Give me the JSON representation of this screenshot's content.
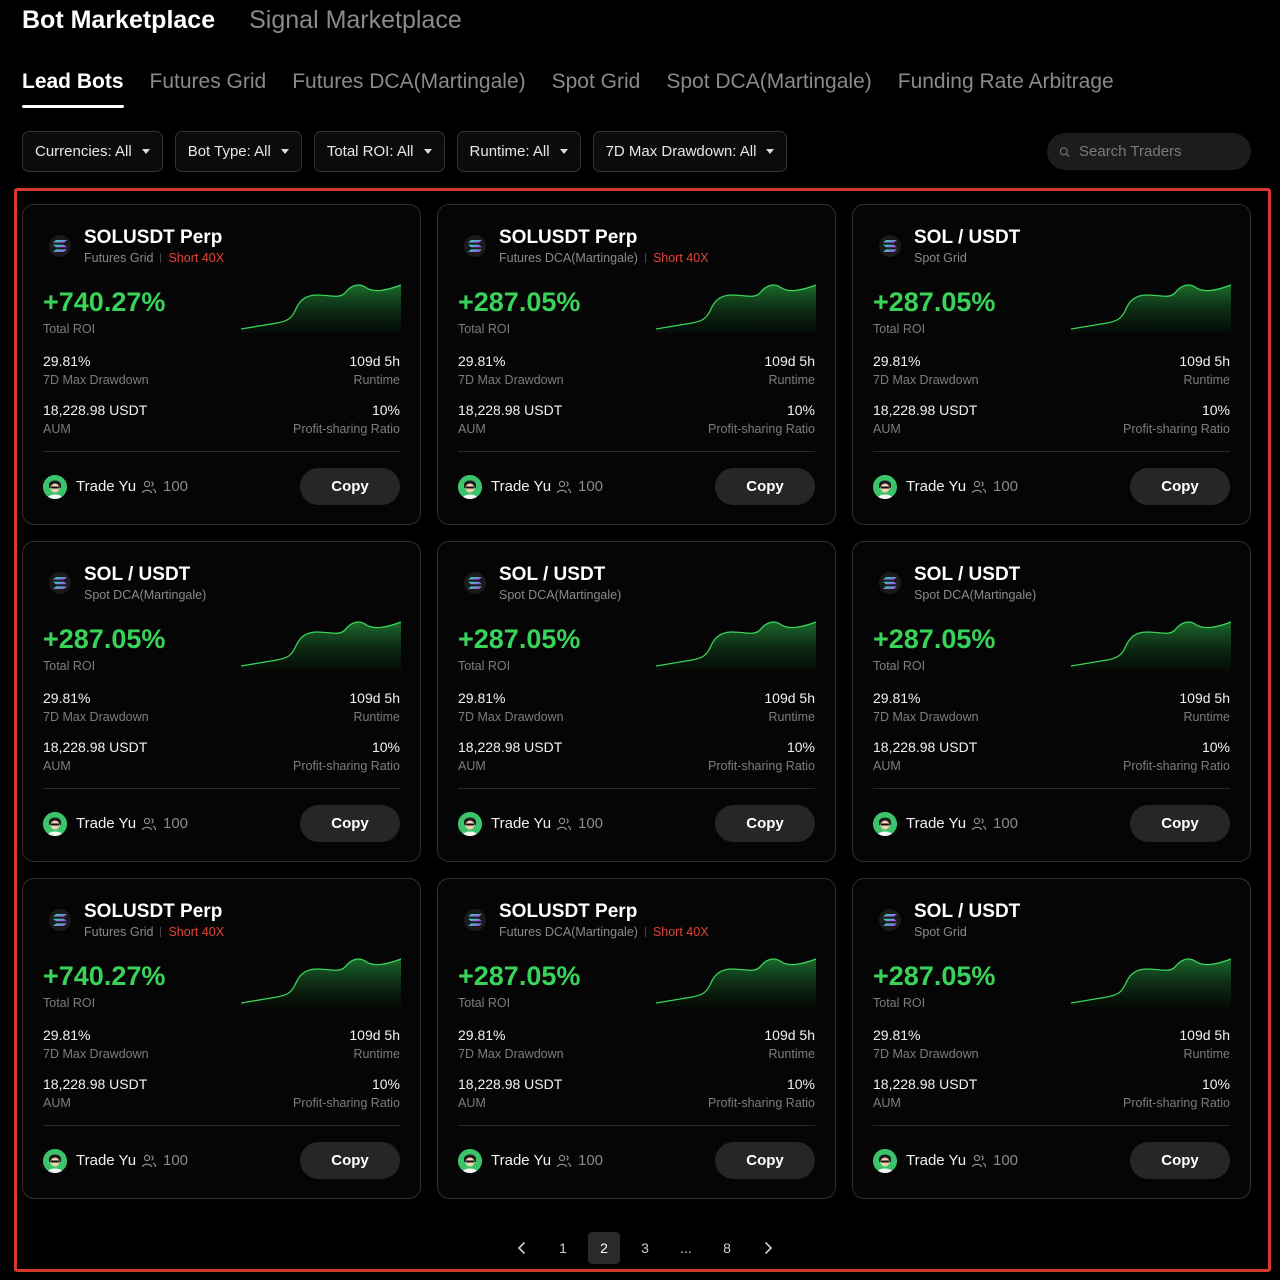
{
  "top_tabs": [
    {
      "label": "Bot Marketplace",
      "active": true
    },
    {
      "label": "Signal Marketplace",
      "active": false
    }
  ],
  "sub_tabs": [
    {
      "label": "Lead Bots",
      "active": true
    },
    {
      "label": "Futures Grid",
      "active": false
    },
    {
      "label": "Futures DCA(Martingale)",
      "active": false
    },
    {
      "label": "Spot Grid",
      "active": false
    },
    {
      "label": "Spot DCA(Martingale)",
      "active": false
    },
    {
      "label": "Funding Rate Arbitrage",
      "active": false
    }
  ],
  "filters": [
    {
      "label": "Currencies: All"
    },
    {
      "label": "Bot Type: All"
    },
    {
      "label": "Total ROI: All"
    },
    {
      "label": "Runtime: All"
    },
    {
      "label": "7D Max Drawdown: All"
    }
  ],
  "search": {
    "placeholder": "Search Traders",
    "icon": "search-icon"
  },
  "colors": {
    "accent_green": "#3ad35a",
    "leverage_red": "#e5443a",
    "highlight_border": "#d63a2f"
  },
  "labels": {
    "roi": "Total ROI",
    "drawdown": "7D Max Drawdown",
    "runtime": "Runtime",
    "aum": "AUM",
    "profit_share": "Profit-sharing Ratio",
    "copy": "Copy"
  },
  "cards": [
    {
      "pair": "SOLUSDT Perp",
      "type": "Futures Grid",
      "leverage": "Short 40X",
      "roi": "+740.27%",
      "drawdown": "29.81%",
      "runtime": "109d 5h",
      "aum": "18,228.98 USDT",
      "profit_share": "10%",
      "trader": "Trade Yu",
      "followers": "100"
    },
    {
      "pair": "SOLUSDT Perp",
      "type": "Futures DCA(Martingale)",
      "leverage": "Short 40X",
      "roi": "+287.05%",
      "drawdown": "29.81%",
      "runtime": "109d 5h",
      "aum": "18,228.98 USDT",
      "profit_share": "10%",
      "trader": "Trade Yu",
      "followers": "100"
    },
    {
      "pair": "SOL / USDT",
      "type": "Spot Grid",
      "leverage": "",
      "roi": "+287.05%",
      "drawdown": "29.81%",
      "runtime": "109d 5h",
      "aum": "18,228.98 USDT",
      "profit_share": "10%",
      "trader": "Trade Yu",
      "followers": "100"
    },
    {
      "pair": "SOL / USDT",
      "type": "Spot DCA(Martingale)",
      "leverage": "",
      "roi": "+287.05%",
      "drawdown": "29.81%",
      "runtime": "109d 5h",
      "aum": "18,228.98 USDT",
      "profit_share": "10%",
      "trader": "Trade Yu",
      "followers": "100"
    },
    {
      "pair": "SOL / USDT",
      "type": "Spot DCA(Martingale)",
      "leverage": "",
      "roi": "+287.05%",
      "drawdown": "29.81%",
      "runtime": "109d 5h",
      "aum": "18,228.98 USDT",
      "profit_share": "10%",
      "trader": "Trade Yu",
      "followers": "100"
    },
    {
      "pair": "SOL / USDT",
      "type": "Spot DCA(Martingale)",
      "leverage": "",
      "roi": "+287.05%",
      "drawdown": "29.81%",
      "runtime": "109d 5h",
      "aum": "18,228.98 USDT",
      "profit_share": "10%",
      "trader": "Trade Yu",
      "followers": "100"
    },
    {
      "pair": "SOLUSDT Perp",
      "type": "Futures Grid",
      "leverage": "Short 40X",
      "roi": "+740.27%",
      "drawdown": "29.81%",
      "runtime": "109d 5h",
      "aum": "18,228.98 USDT",
      "profit_share": "10%",
      "trader": "Trade Yu",
      "followers": "100"
    },
    {
      "pair": "SOLUSDT Perp",
      "type": "Futures DCA(Martingale)",
      "leverage": "Short 40X",
      "roi": "+287.05%",
      "drawdown": "29.81%",
      "runtime": "109d 5h",
      "aum": "18,228.98 USDT",
      "profit_share": "10%",
      "trader": "Trade Yu",
      "followers": "100"
    },
    {
      "pair": "SOL / USDT",
      "type": "Spot Grid",
      "leverage": "",
      "roi": "+287.05%",
      "drawdown": "29.81%",
      "runtime": "109d 5h",
      "aum": "18,228.98 USDT",
      "profit_share": "10%",
      "trader": "Trade Yu",
      "followers": "100"
    }
  ],
  "pagination": {
    "prev_icon": "chevron-left-icon",
    "next_icon": "chevron-right-icon",
    "pages": [
      "1",
      "2",
      "3",
      "...",
      "8"
    ],
    "current": "2"
  }
}
